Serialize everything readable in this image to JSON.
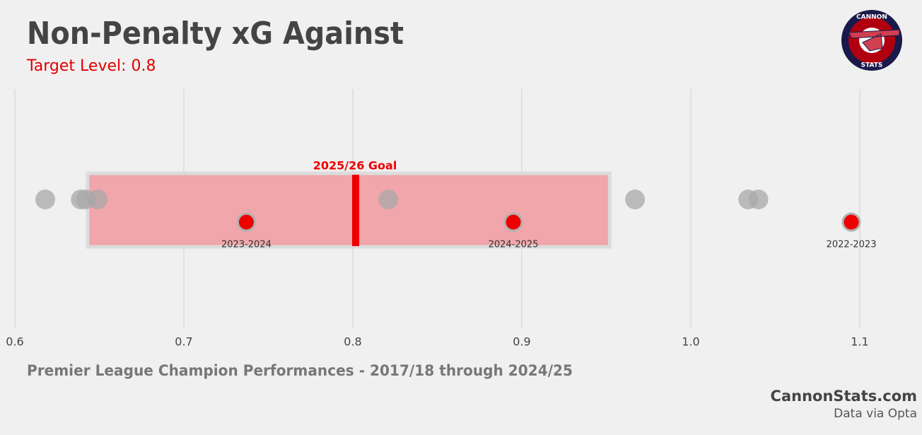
{
  "chart_data": {
    "type": "strip",
    "title": "Non-Penalty xG Against",
    "subtitle": "Target Level: 0.8",
    "footer": "Premier League Champion Performances - 2017/18 through 2024/25",
    "brand": "CannonStats.com",
    "source": "Data via Opta",
    "logo_top": "CANNON",
    "logo_bottom": "STATS",
    "xlim": [
      0.6,
      1.13
    ],
    "xticks": [
      0.6,
      0.7,
      0.8,
      0.9,
      {
        "value": 1,
        "label": "1.0"
      },
      1.1
    ],
    "grid": true,
    "target": 0.8,
    "target_label": "2025/26 Goal",
    "target_color": "#ee0000",
    "target_range": [
      0.643,
      0.952
    ],
    "range_color": "#f0a6aa",
    "series": [
      {
        "color": "#a8a8a8",
        "values": [
          0.618,
          0.639,
          0.642,
          0.649,
          0.821,
          0.967,
          1.034,
          1.04
        ]
      },
      {
        "color": "#ee0000",
        "values": [
          0.737,
          0.895,
          1.095
        ],
        "labels": [
          "2023-2024",
          "2024-2025",
          "2022-2023"
        ]
      }
    ]
  }
}
